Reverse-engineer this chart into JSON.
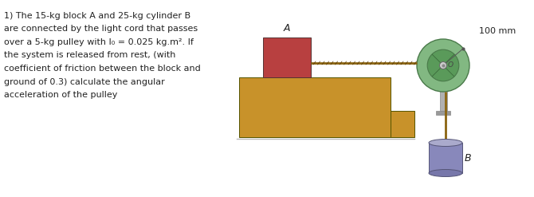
{
  "text_lines": [
    "1) The 15-kg block A and 25-kg cylinder B",
    "are connected by the light cord that passes",
    "over a 5-kg pulley with I₀ = 0.025 kg.m². If",
    "the system is released from rest, (with",
    "coefficient of friction between the block and",
    "ground of 0.3) calculate the angular",
    "acceleration of the pulley"
  ],
  "text_fontsize": 8.0,
  "bg_color": "#ffffff",
  "table_color": "#c8922a",
  "block_a_color": "#b84040",
  "pulley_outer_color": "#82b882",
  "pulley_inner_color": "#5a9a5a",
  "cylinder_b_color": "#8888bb",
  "rope_color": "#8B6510",
  "axle_color": "#b0b0b0",
  "label_color": "#222222",
  "ground_color": "#cccccc"
}
